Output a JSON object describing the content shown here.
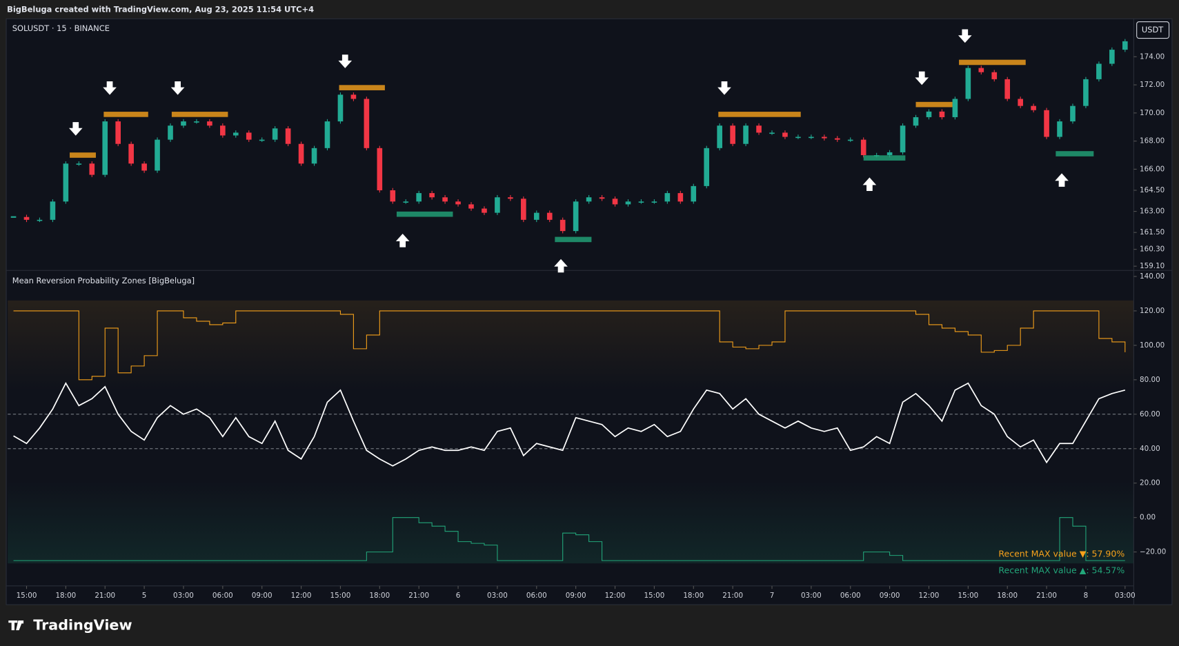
{
  "header": "BigBeluga created with TradingView.com, Aug 23, 2025 11:54 UTC+4",
  "logo": "TradingView",
  "chart_data": [
    {
      "type": "candlestick",
      "title": "SOLUSDT · 15 · BINANCE",
      "badge": "USDT",
      "x": [
        -1,
        0,
        1,
        2,
        3,
        4,
        5,
        6,
        7,
        8,
        9,
        10,
        11,
        12,
        13,
        14,
        15,
        16,
        17,
        18,
        19,
        20,
        21,
        22,
        23,
        24,
        25,
        26,
        27,
        28,
        29,
        30,
        31,
        32,
        33,
        34,
        35,
        36,
        37,
        38,
        39,
        40,
        41,
        42,
        43,
        44,
        45,
        46,
        47,
        48,
        49,
        50,
        51,
        52,
        53,
        54,
        55,
        56,
        57,
        58,
        59,
        60,
        61,
        62,
        63,
        64,
        65,
        66,
        67,
        68,
        69,
        70,
        71,
        72,
        73,
        74,
        75,
        76,
        77,
        78,
        79,
        80,
        81,
        82,
        83,
        84
      ],
      "values": [
        162.6,
        162.4,
        162.4,
        163.7,
        166.4,
        166.4,
        165.6,
        169.4,
        167.8,
        166.4,
        165.9,
        168.1,
        169.1,
        169.4,
        169.4,
        169.1,
        168.4,
        168.6,
        168.1,
        168.1,
        168.9,
        167.8,
        166.4,
        167.5,
        169.4,
        171.3,
        171.0,
        167.5,
        164.5,
        163.7,
        163.7,
        164.3,
        164.0,
        163.7,
        163.5,
        163.2,
        162.9,
        164.0,
        163.9,
        162.4,
        162.9,
        162.4,
        161.6,
        163.7,
        164.0,
        163.9,
        163.5,
        163.7,
        163.7,
        163.7,
        164.3,
        163.7,
        164.8,
        167.5,
        169.1,
        167.8,
        169.1,
        168.6,
        168.6,
        168.3,
        168.3,
        168.3,
        168.2,
        168.1,
        168.1,
        167.0,
        167.0,
        167.2,
        169.1,
        169.7,
        170.1,
        169.7,
        171.0,
        173.2,
        172.9,
        172.4,
        171.0,
        170.5,
        170.2,
        168.3,
        169.4,
        170.5,
        172.4,
        173.5,
        174.5,
        175.1
      ],
      "up_color": "#22ab94",
      "down_color": "#f23645",
      "xlim": [
        -1.44,
        84.66
      ],
      "ylim": [
        158.8,
        176.7
      ],
      "yticks": [
        {
          "value": 174,
          "label": "174.00"
        },
        {
          "value": 172,
          "label": "172.00"
        },
        {
          "value": 170,
          "label": "170.00"
        },
        {
          "value": 168,
          "label": "168.00"
        },
        {
          "value": 166,
          "label": "166.00"
        },
        {
          "value": 164.5,
          "label": "164.50"
        },
        {
          "value": 163,
          "label": "163.00"
        },
        {
          "value": 161.5,
          "label": "161.50"
        },
        {
          "value": 160.3,
          "label": "160.30"
        },
        {
          "value": 159.1,
          "label": "159.10"
        }
      ],
      "zones": [
        {
          "x": [
            3.3,
            5.3
          ],
          "y": 167.0,
          "side": "upper",
          "color": "#f7a21b"
        },
        {
          "x": [
            5.9,
            9.3
          ],
          "y": 169.9,
          "side": "upper",
          "color": "#f7a21b"
        },
        {
          "x": [
            11.1,
            15.4
          ],
          "y": 169.9,
          "side": "upper",
          "color": "#f7a21b"
        },
        {
          "x": [
            23.9,
            27.4
          ],
          "y": 171.8,
          "side": "upper",
          "color": "#f7a21b"
        },
        {
          "x": [
            52.9,
            59.2
          ],
          "y": 169.9,
          "side": "upper",
          "color": "#f7a21b"
        },
        {
          "x": [
            68.0,
            70.8
          ],
          "y": 170.6,
          "side": "upper",
          "color": "#f7a21b"
        },
        {
          "x": [
            71.3,
            76.4
          ],
          "y": 173.6,
          "side": "upper",
          "color": "#f7a21b"
        },
        {
          "x": [
            28.3,
            32.6
          ],
          "y": 162.8,
          "side": "lower",
          "color": "#22a67a"
        },
        {
          "x": [
            40.4,
            43.2
          ],
          "y": 161.0,
          "side": "lower",
          "color": "#22a67a"
        },
        {
          "x": [
            64.0,
            67.2
          ],
          "y": 166.8,
          "side": "lower",
          "color": "#22a67a"
        },
        {
          "x": [
            78.7,
            81.6
          ],
          "y": 167.1,
          "side": "lower",
          "color": "#22a67a"
        }
      ]
    },
    {
      "type": "line",
      "title": "Mean Reversion Probability Zones [BigBeluga]",
      "x": [
        -1,
        0,
        1,
        2,
        3,
        4,
        5,
        6,
        7,
        8,
        9,
        10,
        11,
        12,
        13,
        14,
        15,
        16,
        17,
        18,
        19,
        20,
        21,
        22,
        23,
        24,
        25,
        26,
        27,
        28,
        29,
        30,
        31,
        32,
        33,
        34,
        35,
        36,
        37,
        38,
        39,
        40,
        41,
        42,
        43,
        44,
        45,
        46,
        47,
        48,
        49,
        50,
        51,
        52,
        53,
        54,
        55,
        56,
        57,
        58,
        59,
        60,
        61,
        62,
        63,
        64,
        65,
        66,
        67,
        68,
        69,
        70,
        71,
        72,
        73,
        74,
        75,
        76,
        77,
        78,
        79,
        80,
        81,
        82,
        83,
        84
      ],
      "series": [
        {
          "color": "#f7a21b",
          "style": "step",
          "values": [
            120,
            120,
            120,
            120,
            120,
            80,
            82,
            110,
            84,
            88,
            94,
            120,
            120,
            116,
            114,
            112,
            113,
            120,
            120,
            120,
            120,
            120,
            120,
            120,
            120,
            118,
            98,
            106,
            120,
            120,
            120,
            120,
            120,
            120,
            120,
            120,
            120,
            120,
            120,
            120,
            120,
            120,
            120,
            120,
            120,
            120,
            120,
            120,
            120,
            120,
            120,
            120,
            120,
            120,
            102,
            99,
            98,
            100,
            102,
            120,
            120,
            120,
            120,
            120,
            120,
            120,
            120,
            120,
            120,
            118,
            112,
            110,
            108,
            106,
            96,
            97,
            100,
            110,
            120,
            120,
            120,
            120,
            120,
            104,
            102,
            96
          ]
        },
        {
          "color": "#22a67a",
          "style": "step",
          "values": [
            -25,
            -25,
            -25,
            -25,
            -25,
            -25,
            -25,
            -25,
            -25,
            -25,
            -25,
            -25,
            -25,
            -25,
            -25,
            -25,
            -25,
            -25,
            -25,
            -25,
            -25,
            -25,
            -25,
            -25,
            -25,
            -25,
            -25,
            -20,
            -20,
            0,
            0,
            -3,
            -5,
            -8,
            -14,
            -15,
            -16,
            -25,
            -25,
            -25,
            -25,
            -25,
            -9,
            -10,
            -14,
            -25,
            -25,
            -25,
            -25,
            -25,
            -25,
            -25,
            -25,
            -25,
            -25,
            -25,
            -25,
            -25,
            -25,
            -25,
            -25,
            -25,
            -25,
            -25,
            -25,
            -20,
            -20,
            -22,
            -25,
            -25,
            -25,
            -25,
            -25,
            -25,
            -25,
            -25,
            -25,
            -25,
            -25,
            -25,
            0,
            -5,
            -25,
            -25,
            -25,
            -25
          ]
        },
        {
          "color": "#ffffff",
          "style": "line",
          "values": [
            47.4,
            43,
            52,
            63,
            78,
            65,
            69,
            76,
            60,
            50,
            45,
            58,
            65,
            60,
            63,
            58,
            47,
            58,
            47,
            43,
            56,
            39,
            34,
            47,
            67,
            74,
            56,
            39,
            34,
            30,
            34,
            39,
            41,
            39,
            39,
            41,
            39,
            50,
            52,
            36,
            43,
            41,
            39,
            58,
            56,
            54,
            47,
            52,
            50,
            54,
            47,
            50,
            63,
            74,
            72,
            63,
            69,
            60,
            56,
            52,
            56,
            52,
            50,
            52,
            39,
            41,
            47,
            43,
            67,
            72,
            65,
            56,
            74,
            78,
            65,
            60,
            47,
            41,
            45,
            32,
            43,
            43,
            56,
            69,
            72,
            74
          ]
        }
      ],
      "levels": [
        60,
        40
      ],
      "xlim": [
        -1.44,
        84.66
      ],
      "ylim": [
        -39.7,
        143.5
      ],
      "yticks": [
        {
          "value": 140,
          "label": "140.00"
        },
        {
          "value": 120,
          "label": "120.00"
        },
        {
          "value": 100,
          "label": "100.00"
        },
        {
          "value": 80,
          "label": "80.00"
        },
        {
          "value": 60,
          "label": "60.00"
        },
        {
          "value": 40,
          "label": "40.00"
        },
        {
          "value": 20,
          "label": "20.00"
        },
        {
          "value": 0,
          "label": "0.00"
        },
        {
          "value": -20,
          "label": "−20.00"
        }
      ],
      "xticks": [
        {
          "value": 0,
          "label": "15:00"
        },
        {
          "value": 3,
          "label": "18:00"
        },
        {
          "value": 6,
          "label": "21:00"
        },
        {
          "value": 9,
          "label": "5"
        },
        {
          "value": 12,
          "label": "03:00"
        },
        {
          "value": 15,
          "label": "06:00"
        },
        {
          "value": 18,
          "label": "09:00"
        },
        {
          "value": 21,
          "label": "12:00"
        },
        {
          "value": 24,
          "label": "15:00"
        },
        {
          "value": 27,
          "label": "18:00"
        },
        {
          "value": 30,
          "label": "21:00"
        },
        {
          "value": 33,
          "label": "6"
        },
        {
          "value": 36,
          "label": "03:00"
        },
        {
          "value": 39,
          "label": "06:00"
        },
        {
          "value": 42,
          "label": "09:00"
        },
        {
          "value": 45,
          "label": "12:00"
        },
        {
          "value": 48,
          "label": "15:00"
        },
        {
          "value": 51,
          "label": "18:00"
        },
        {
          "value": 54,
          "label": "21:00"
        },
        {
          "value": 57,
          "label": "7"
        },
        {
          "value": 60,
          "label": "03:00"
        },
        {
          "value": 63,
          "label": "06:00"
        },
        {
          "value": 66,
          "label": "09:00"
        },
        {
          "value": 69,
          "label": "12:00"
        },
        {
          "value": 72,
          "label": "15:00"
        },
        {
          "value": 75,
          "label": "18:00"
        },
        {
          "value": 78,
          "label": "21:00"
        },
        {
          "value": 81,
          "label": "8"
        },
        {
          "value": 84,
          "label": "03:00"
        }
      ],
      "annotations": [
        {
          "text": "Recent MAX value ▼: 57.90%",
          "color": "#f7a21b"
        },
        {
          "text": "Recent MAX value ▲: 54.57%",
          "color": "#22a67a"
        }
      ]
    }
  ]
}
